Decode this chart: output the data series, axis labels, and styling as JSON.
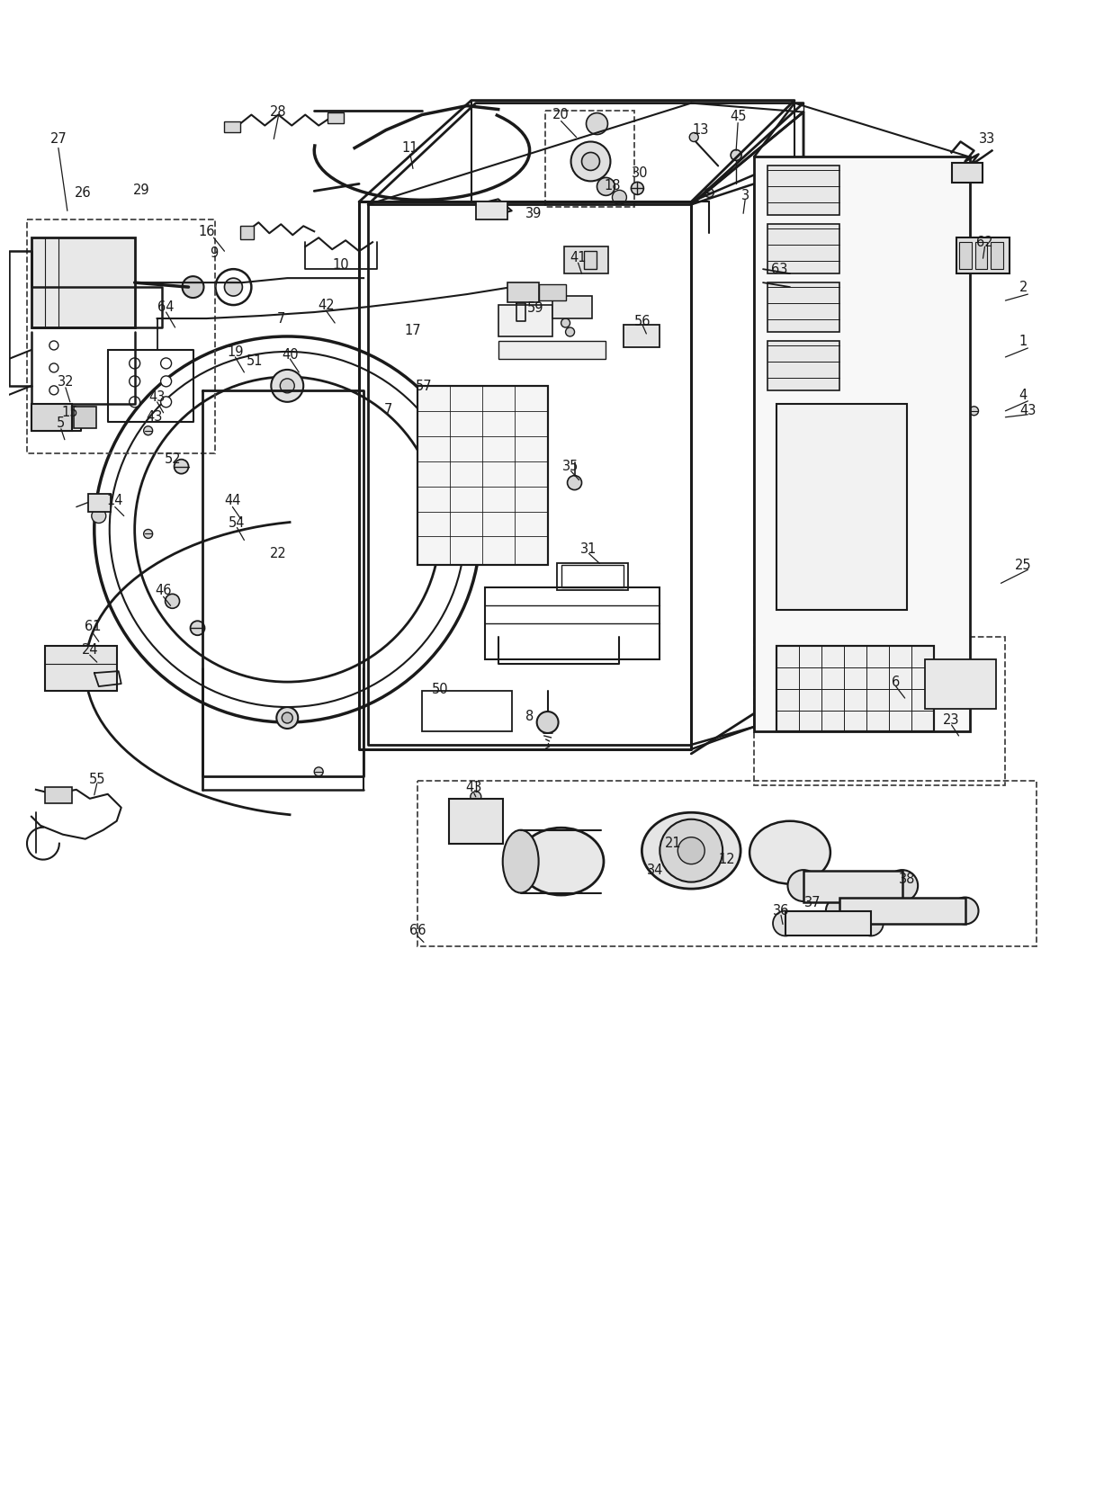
{
  "bg_color": "#ffffff",
  "line_color": "#1a1a1a",
  "fig_width": 12.0,
  "fig_height": 16.56,
  "dpi": 100
}
